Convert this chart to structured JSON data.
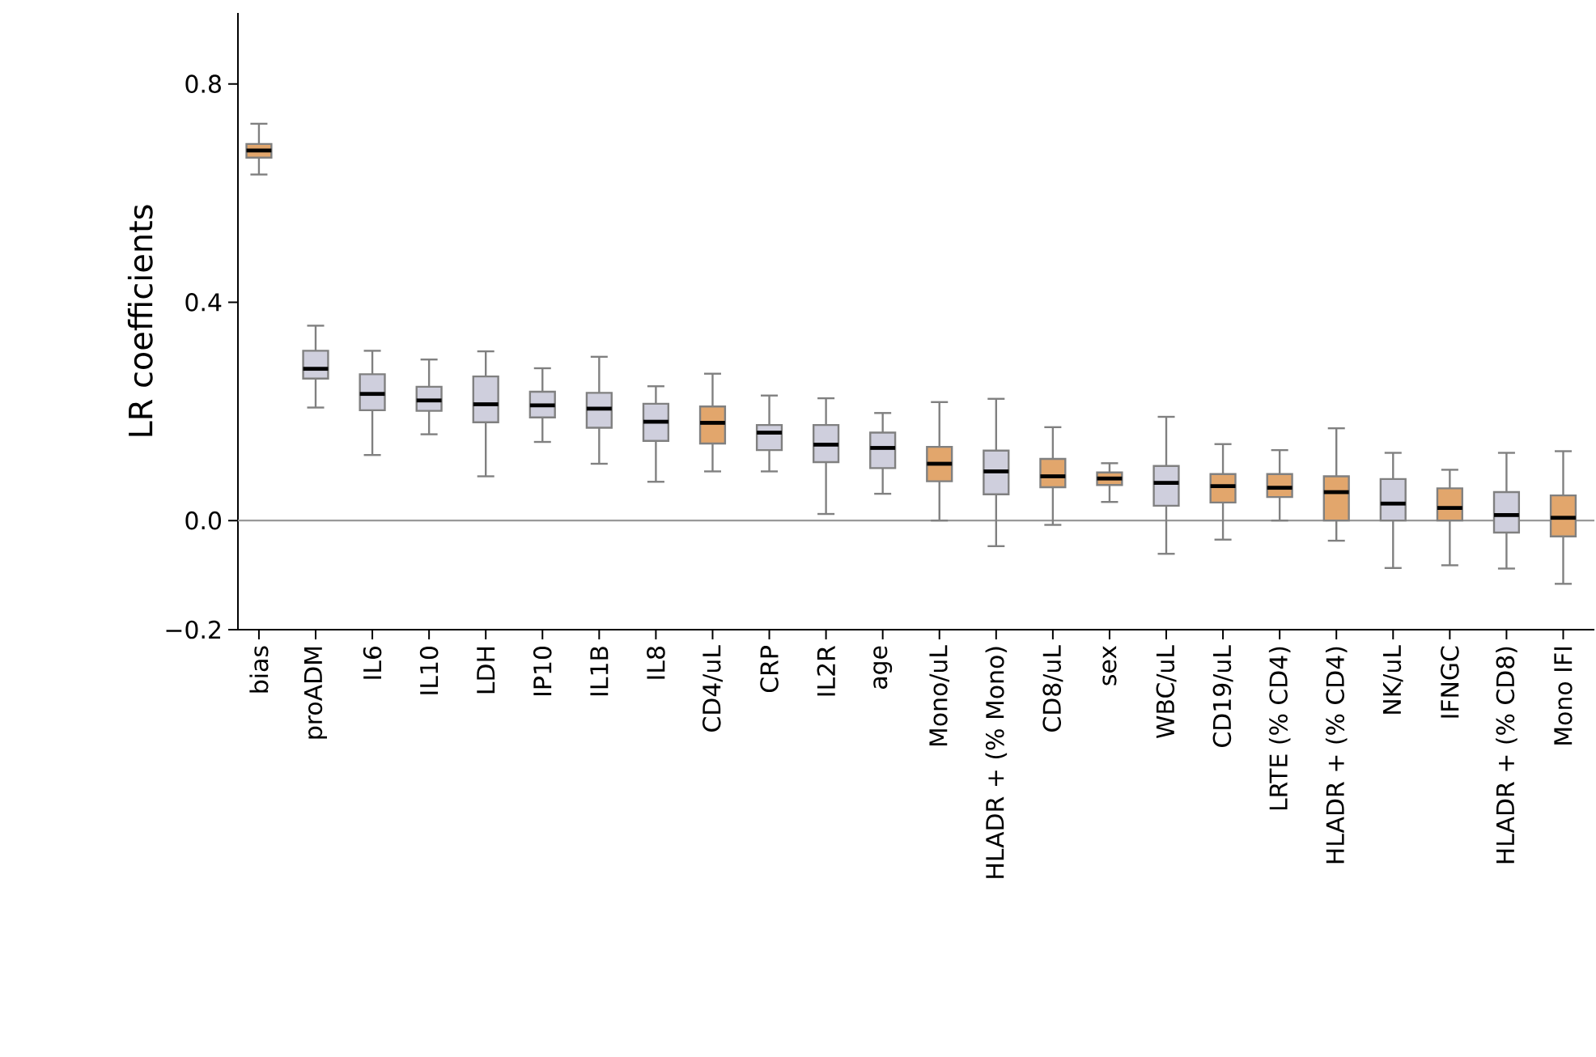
{
  "chart_data": {
    "type": "box",
    "ylabel": "LR coefficients",
    "categories": [
      "bias",
      "proADM",
      "IL6",
      "IL10",
      "LDH",
      "IP10",
      "IL1B",
      "IL8",
      "CD4/uL",
      "CRP",
      "IL2R",
      "age",
      "Mono/uL",
      "HLADR + (% Mono)",
      "CD8/uL",
      "sex",
      "WBC/uL",
      "CD19/uL",
      "LRTE (% CD4)",
      "HLADR + (% CD4)",
      "NK/uL",
      "IFNGC",
      "HLADR + (% CD8)",
      "Mono IFI"
    ],
    "boxes": [
      {
        "low": 0.634,
        "q1": 0.665,
        "median": 0.678,
        "q3": 0.69,
        "high": 0.727
      },
      {
        "low": 0.207,
        "q1": 0.26,
        "median": 0.278,
        "q3": 0.311,
        "high": 0.357
      },
      {
        "low": 0.12,
        "q1": 0.202,
        "median": 0.232,
        "q3": 0.268,
        "high": 0.311
      },
      {
        "low": 0.158,
        "q1": 0.201,
        "median": 0.22,
        "q3": 0.245,
        "high": 0.295
      },
      {
        "low": 0.081,
        "q1": 0.18,
        "median": 0.213,
        "q3": 0.264,
        "high": 0.31
      },
      {
        "low": 0.144,
        "q1": 0.189,
        "median": 0.211,
        "q3": 0.236,
        "high": 0.279
      },
      {
        "low": 0.104,
        "q1": 0.17,
        "median": 0.205,
        "q3": 0.234,
        "high": 0.3
      },
      {
        "low": 0.071,
        "q1": 0.146,
        "median": 0.181,
        "q3": 0.214,
        "high": 0.246
      },
      {
        "low": 0.09,
        "q1": 0.141,
        "median": 0.179,
        "q3": 0.209,
        "high": 0.269
      },
      {
        "low": 0.09,
        "q1": 0.129,
        "median": 0.161,
        "q3": 0.175,
        "high": 0.229
      },
      {
        "low": 0.012,
        "q1": 0.107,
        "median": 0.139,
        "q3": 0.175,
        "high": 0.224
      },
      {
        "low": 0.049,
        "q1": 0.096,
        "median": 0.133,
        "q3": 0.161,
        "high": 0.197
      },
      {
        "low": 0.0,
        "q1": 0.072,
        "median": 0.104,
        "q3": 0.135,
        "high": 0.217
      },
      {
        "low": -0.047,
        "q1": 0.048,
        "median": 0.09,
        "q3": 0.128,
        "high": 0.223
      },
      {
        "low": -0.008,
        "q1": 0.061,
        "median": 0.081,
        "q3": 0.113,
        "high": 0.171
      },
      {
        "low": 0.034,
        "q1": 0.065,
        "median": 0.077,
        "q3": 0.088,
        "high": 0.105
      },
      {
        "low": -0.061,
        "q1": 0.027,
        "median": 0.069,
        "q3": 0.1,
        "high": 0.19
      },
      {
        "low": -0.035,
        "q1": 0.033,
        "median": 0.063,
        "q3": 0.085,
        "high": 0.14
      },
      {
        "low": 0.0,
        "q1": 0.043,
        "median": 0.06,
        "q3": 0.085,
        "high": 0.129
      },
      {
        "low": -0.037,
        "q1": 0.0,
        "median": 0.052,
        "q3": 0.081,
        "high": 0.169
      },
      {
        "low": -0.087,
        "q1": 0.0,
        "median": 0.031,
        "q3": 0.076,
        "high": 0.124
      },
      {
        "low": -0.082,
        "q1": 0.0,
        "median": 0.023,
        "q3": 0.059,
        "high": 0.093
      },
      {
        "low": -0.088,
        "q1": -0.022,
        "median": 0.01,
        "q3": 0.052,
        "high": 0.124
      },
      {
        "low": -0.116,
        "q1": -0.029,
        "median": 0.005,
        "q3": 0.046,
        "high": 0.127
      }
    ],
    "colors": [
      "#e2a66c",
      "#cfcfdd",
      "#cfcfdd",
      "#cfcfdd",
      "#cfcfdd",
      "#cfcfdd",
      "#cfcfdd",
      "#cfcfdd",
      "#e2a66c",
      "#cfcfdd",
      "#cfcfdd",
      "#cfcfdd",
      "#e2a66c",
      "#cfcfdd",
      "#e2a66c",
      "#e2a66c",
      "#cfcfdd",
      "#e2a66c",
      "#e2a66c",
      "#e2a66c",
      "#cfcfdd",
      "#e2a66c",
      "#cfcfdd",
      "#e2a66c"
    ],
    "ylim": [
      -0.2,
      0.93
    ],
    "yticks": [
      {
        "value": -0.2,
        "label": "−0.2"
      },
      {
        "value": 0,
        "label": "0.0"
      },
      {
        "value": 0.4,
        "label": "0.4"
      },
      {
        "value": 0.8,
        "label": "0.8"
      }
    ],
    "ref_lines": [
      {
        "axis": "y",
        "value": 0,
        "color": "#999999"
      }
    ]
  }
}
